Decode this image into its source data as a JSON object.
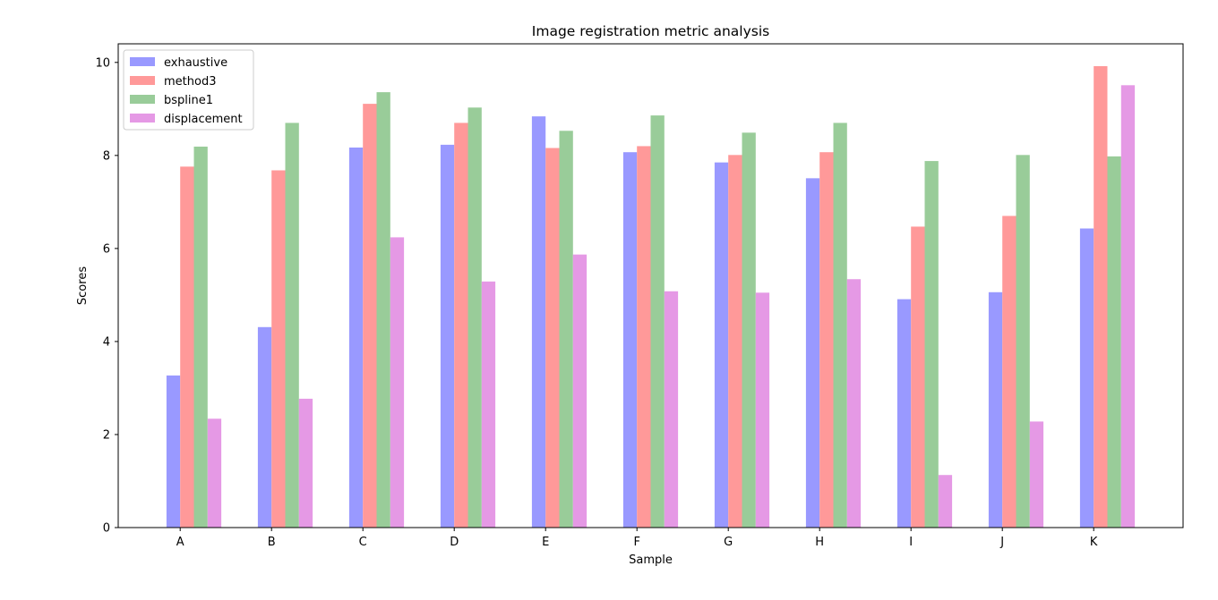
{
  "chart_data": {
    "type": "bar",
    "title": "Image registration metric analysis",
    "xlabel": "Sample",
    "ylabel": "Scores",
    "categories": [
      "A",
      "B",
      "C",
      "D",
      "E",
      "F",
      "G",
      "H",
      "I",
      "J",
      "K"
    ],
    "ylim": [
      0,
      10.4
    ],
    "yticks": [
      0,
      2,
      4,
      6,
      8,
      10
    ],
    "grid": false,
    "legend_position": "upper-left",
    "series": [
      {
        "name": "exhaustive",
        "color": "#9999ff",
        "values": [
          3.27,
          4.31,
          8.17,
          8.23,
          8.84,
          8.07,
          7.85,
          7.51,
          4.91,
          5.06,
          6.43
        ]
      },
      {
        "name": "method3",
        "color": "#ff9999",
        "values": [
          7.76,
          7.68,
          9.11,
          8.7,
          8.16,
          8.2,
          8.01,
          8.07,
          6.47,
          6.7,
          9.92
        ]
      },
      {
        "name": "bspline1",
        "color": "#99cc99",
        "values": [
          8.19,
          8.7,
          9.36,
          9.03,
          8.53,
          8.86,
          8.49,
          8.7,
          7.88,
          8.01,
          7.98
        ]
      },
      {
        "name": "displacement",
        "color": "#e599e5",
        "values": [
          2.34,
          2.77,
          6.24,
          5.29,
          5.87,
          5.08,
          5.05,
          5.34,
          1.13,
          2.28,
          9.51
        ]
      }
    ]
  }
}
